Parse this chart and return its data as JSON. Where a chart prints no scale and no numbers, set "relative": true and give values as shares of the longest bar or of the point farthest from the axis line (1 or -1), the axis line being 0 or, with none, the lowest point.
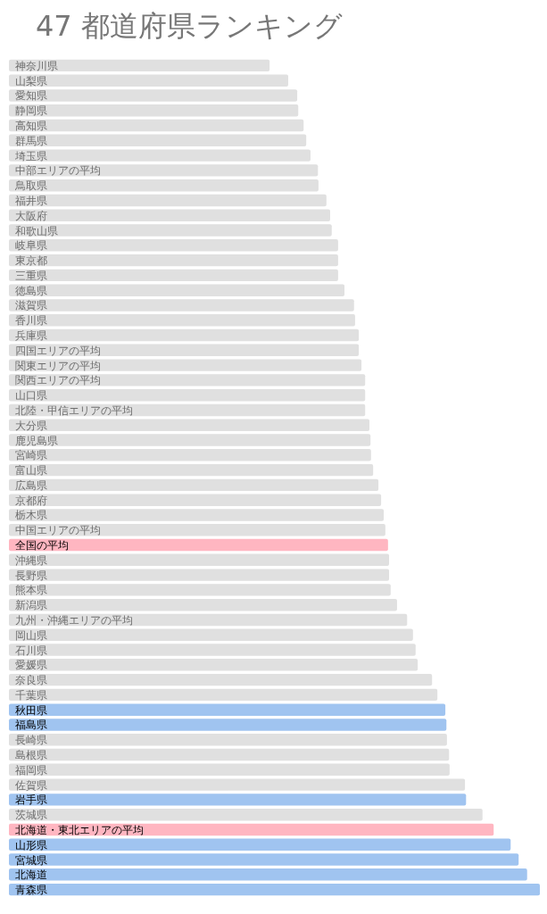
{
  "chart_data": {
    "type": "bar",
    "orientation": "horizontal",
    "relative": true,
    "title": "47 都道府県ランキング",
    "categories": [
      "神奈川県",
      "山梨県",
      "愛知県",
      "静岡県",
      "高知県",
      "群馬県",
      "埼玉県",
      "中部エリアの平均",
      "鳥取県",
      "福井県",
      "大阪府",
      "和歌山県",
      "岐阜県",
      "東京都",
      "三重県",
      "徳島県",
      "滋賀県",
      "香川県",
      "兵庫県",
      "四国エリアの平均",
      "関東エリアの平均",
      "関西エリアの平均",
      "山口県",
      "北陸・甲信エリアの平均",
      "大分県",
      "鹿児島県",
      "宮崎県",
      "富山県",
      "広島県",
      "京都府",
      "栃木県",
      "中国エリアの平均",
      "全国の平均",
      "沖縄県",
      "長野県",
      "熊本県",
      "新潟県",
      "九州・沖縄エリアの平均",
      "岡山県",
      "石川県",
      "愛媛県",
      "奈良県",
      "千葉県",
      "秋田県",
      "福島県",
      "長崎県",
      "島根県",
      "福岡県",
      "佐賀県",
      "岩手県",
      "茨城県",
      "北海道・東北エリアの平均",
      "山形県",
      "宮城県",
      "北海道",
      "青森県"
    ],
    "values": [
      0.491,
      0.526,
      0.543,
      0.545,
      0.555,
      0.56,
      0.568,
      0.582,
      0.583,
      0.598,
      0.605,
      0.608,
      0.62,
      0.62,
      0.62,
      0.632,
      0.65,
      0.652,
      0.659,
      0.659,
      0.664,
      0.671,
      0.671,
      0.671,
      0.679,
      0.681,
      0.682,
      0.686,
      0.696,
      0.701,
      0.706,
      0.709,
      0.714,
      0.716,
      0.716,
      0.719,
      0.731,
      0.75,
      0.761,
      0.766,
      0.77,
      0.797,
      0.807,
      0.822,
      0.824,
      0.825,
      0.829,
      0.83,
      0.859,
      0.861,
      0.892,
      0.913,
      0.945,
      0.96,
      0.976,
      1
    ],
    "colors": [
      "#e0e0e0",
      "#e0e0e0",
      "#e0e0e0",
      "#e0e0e0",
      "#e0e0e0",
      "#e0e0e0",
      "#e0e0e0",
      "#e0e0e0",
      "#e0e0e0",
      "#e0e0e0",
      "#e0e0e0",
      "#e0e0e0",
      "#e0e0e0",
      "#e0e0e0",
      "#e0e0e0",
      "#e0e0e0",
      "#e0e0e0",
      "#e0e0e0",
      "#e0e0e0",
      "#e0e0e0",
      "#e0e0e0",
      "#e0e0e0",
      "#e0e0e0",
      "#e0e0e0",
      "#e0e0e0",
      "#e0e0e0",
      "#e0e0e0",
      "#e0e0e0",
      "#e0e0e0",
      "#e0e0e0",
      "#e0e0e0",
      "#e0e0e0",
      "#ffb6c1",
      "#e0e0e0",
      "#e0e0e0",
      "#e0e0e0",
      "#e0e0e0",
      "#e0e0e0",
      "#e0e0e0",
      "#e0e0e0",
      "#e0e0e0",
      "#e0e0e0",
      "#e0e0e0",
      "#a0c4f0",
      "#a0c4f0",
      "#e0e0e0",
      "#e0e0e0",
      "#e0e0e0",
      "#e0e0e0",
      "#a0c4f0",
      "#e0e0e0",
      "#ffb6c1",
      "#a0c4f0",
      "#a0c4f0",
      "#a0c4f0",
      "#a0c4f0"
    ]
  }
}
